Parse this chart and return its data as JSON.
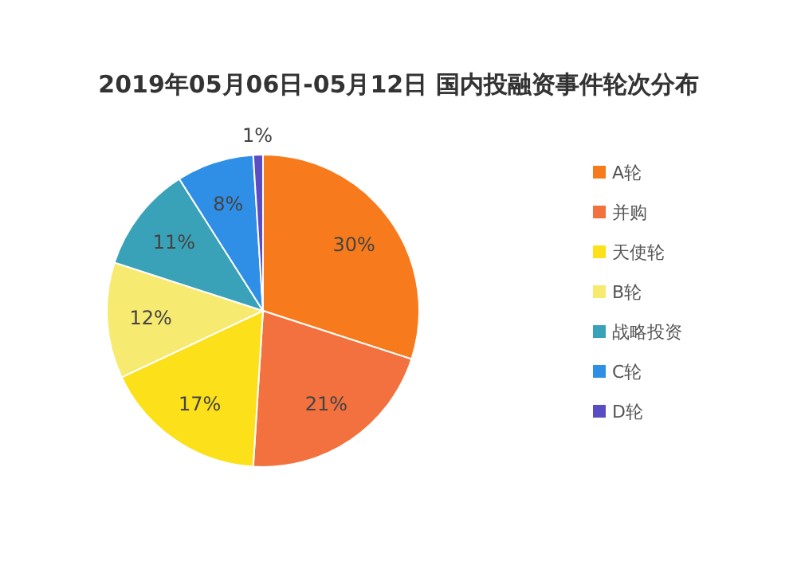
{
  "chart_data": {
    "type": "pie",
    "title": "2019年05月06日-05月12日 国内投融资事件轮次分布",
    "categories": [
      "A轮",
      "并购",
      "天使轮",
      "B轮",
      "战略投资",
      "C轮",
      "D轮"
    ],
    "values": [
      30,
      21,
      17,
      12,
      11,
      8,
      1
    ],
    "colors": [
      "#f77b1c",
      "#f2713f",
      "#fbe01a",
      "#f7ea70",
      "#3aa2b8",
      "#2f8ee6",
      "#5a4cc4"
    ],
    "value_labels": [
      "30%",
      "21%",
      "17%",
      "12%",
      "11%",
      "8%",
      "1%"
    ],
    "legend": "right"
  }
}
